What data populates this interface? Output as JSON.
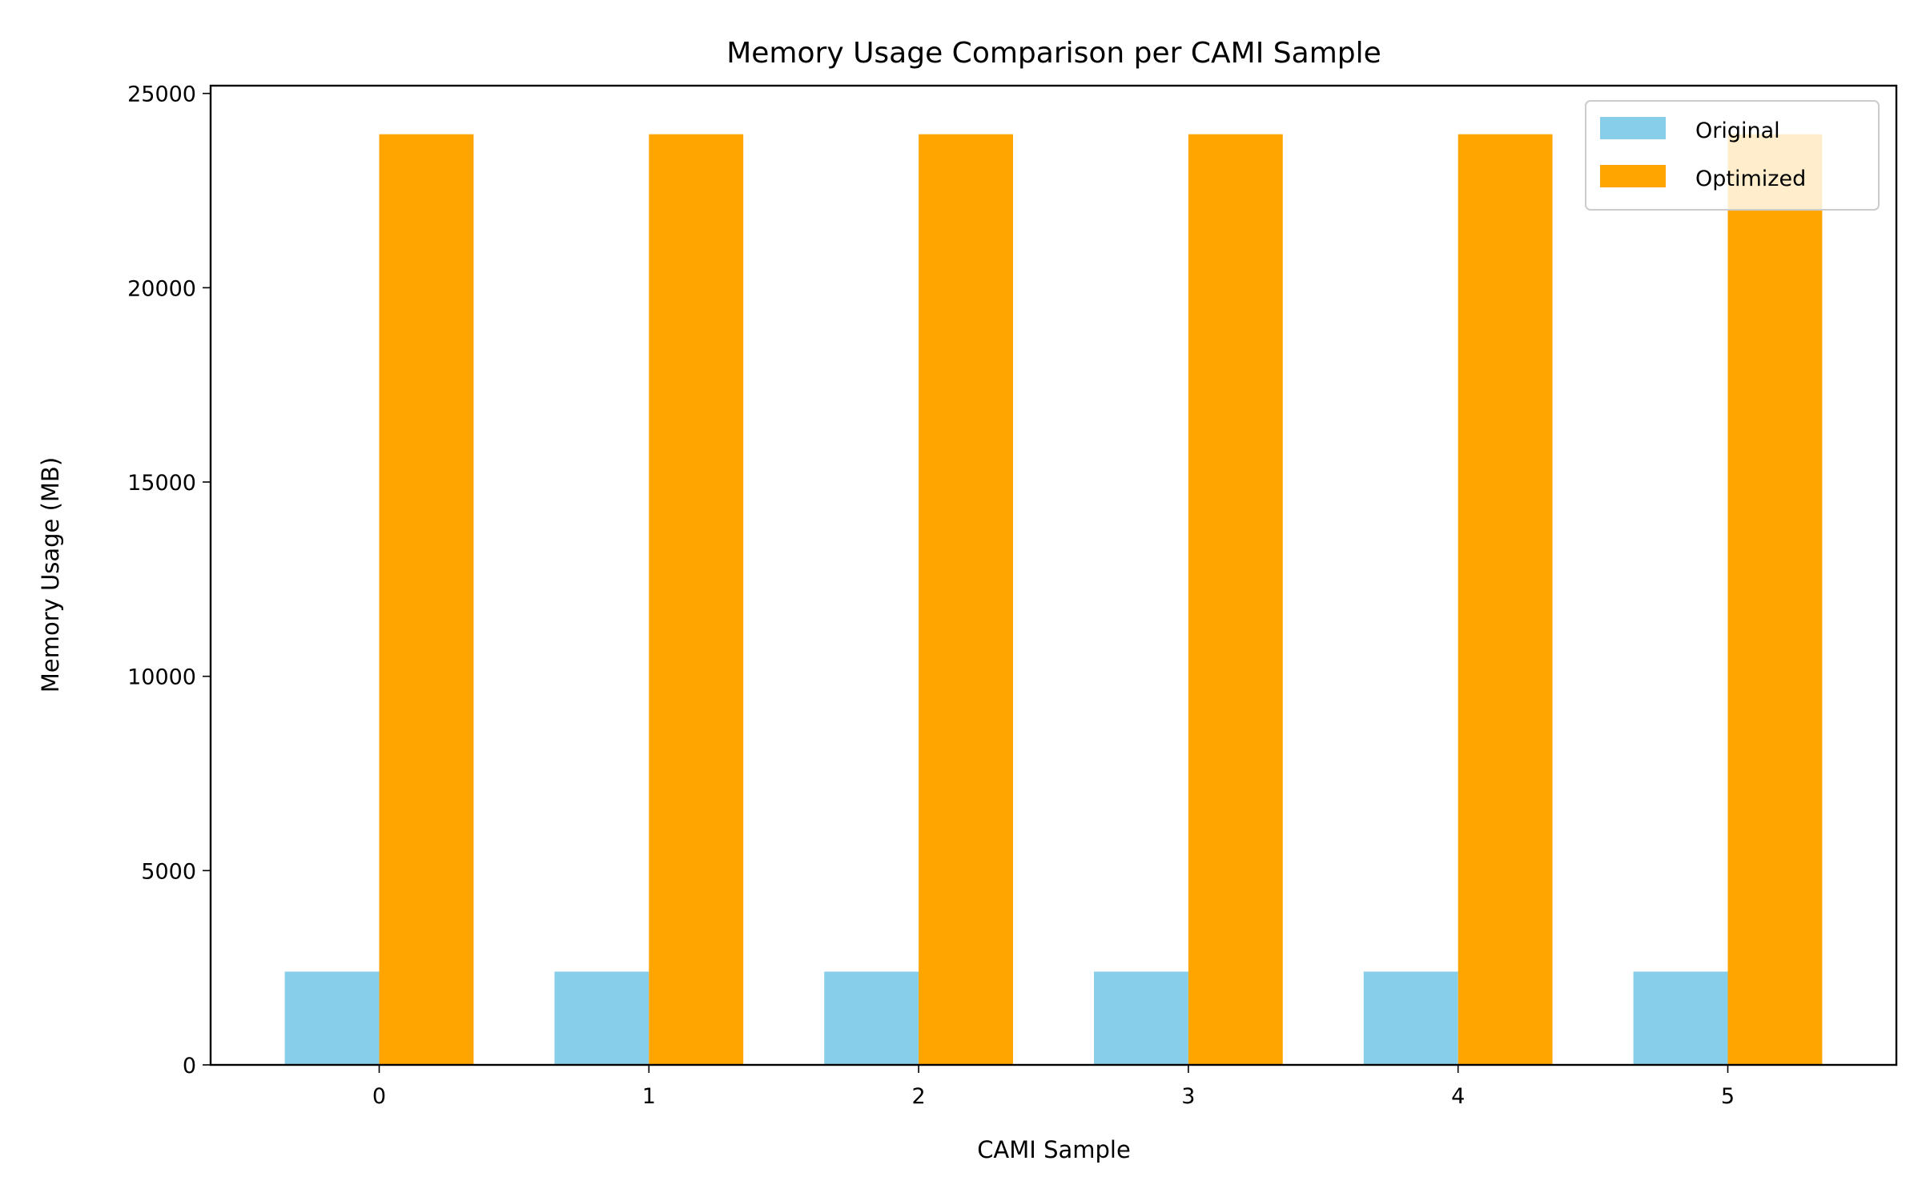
{
  "chart_data": {
    "type": "bar",
    "title": "Memory Usage Comparison per CAMI Sample",
    "xlabel": "CAMI Sample",
    "ylabel": "Memory Usage (MB)",
    "categories": [
      "0",
      "1",
      "2",
      "3",
      "4",
      "5"
    ],
    "series": [
      {
        "name": "Original",
        "color": "#87CEEB",
        "values": [
          2400,
          2400,
          2400,
          2400,
          2400,
          2400
        ]
      },
      {
        "name": "Optimized",
        "color": "#FFA500",
        "values": [
          23950,
          23950,
          23950,
          23950,
          23950,
          23950
        ]
      }
    ],
    "ylim": [
      0,
      25200
    ],
    "yticks": [
      0,
      5000,
      10000,
      15000,
      20000,
      25000
    ],
    "ytick_labels": [
      "0",
      "5000",
      "10000",
      "15000",
      "20000",
      "25000"
    ],
    "grid": false,
    "legend_position": "top-right"
  }
}
